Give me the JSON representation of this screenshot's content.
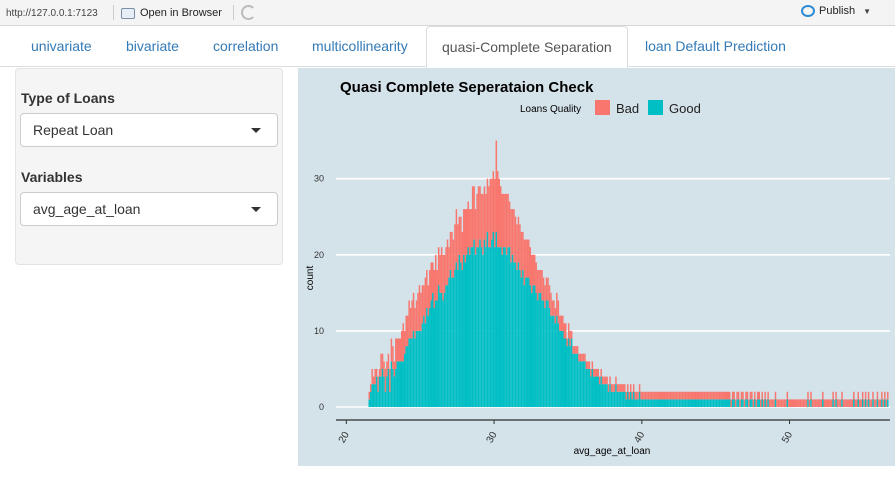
{
  "browser": {
    "url": "http://127.0.0.1:7123",
    "open_label": "Open in Browser",
    "publish_label": "Publish"
  },
  "tabs": [
    {
      "label": "univariate",
      "active": false
    },
    {
      "label": "bivariate",
      "active": false
    },
    {
      "label": "correlation",
      "active": false
    },
    {
      "label": "multicollinearity",
      "active": false
    },
    {
      "label": "quasi-Complete Separation",
      "active": true
    },
    {
      "label": "loan Default Prediction",
      "active": false
    }
  ],
  "sidebar": {
    "type_label": "Type of Loans",
    "type_value": "Repeat Loan",
    "var_label": "Variables",
    "var_value": "avg_age_at_loan"
  },
  "chart_data": {
    "type": "bar",
    "title": "Quasi Complete Seperataion Check",
    "xlabel": "avg_age_at_loan",
    "ylabel": "count",
    "xlim": [
      19.3,
      56.8
    ],
    "ylim": [
      0,
      36
    ],
    "xticks": [
      "20",
      "30",
      "40",
      "50"
    ],
    "yticks": [
      "0",
      "10",
      "20",
      "30"
    ],
    "legend": {
      "title": "Loans Quality",
      "position": "top",
      "entries": [
        "Bad",
        "Good"
      ]
    },
    "colors": {
      "Bad": "#f8766d",
      "Good": "#00bfc4",
      "background": "#d4e2e9",
      "grid": "#ffffff"
    },
    "stacked": true,
    "x_start": 21.5,
    "bin_width": 0.1,
    "series": [
      {
        "name": "Good",
        "values": [
          1,
          2,
          3,
          3,
          3,
          4,
          2,
          4,
          4,
          5,
          4,
          2,
          4,
          5,
          2,
          6,
          5,
          4,
          5,
          6,
          6,
          6,
          6,
          6,
          7,
          8,
          8,
          9,
          9,
          9,
          10,
          9,
          10,
          10,
          10,
          10,
          11,
          12,
          11,
          13,
          12,
          13,
          14,
          15,
          13,
          14,
          14,
          16,
          15,
          15,
          14,
          15,
          16,
          16,
          17,
          18,
          17,
          17,
          18,
          19,
          18,
          20,
          19,
          18,
          20,
          19,
          20,
          21,
          20,
          21,
          21,
          22,
          20,
          21,
          21,
          22,
          21,
          20,
          22,
          21,
          23,
          21,
          21,
          22,
          23,
          21,
          23,
          21,
          21,
          21,
          20,
          21,
          21,
          20,
          21,
          21,
          19,
          20,
          19,
          19,
          18,
          19,
          18,
          17,
          18,
          16,
          17,
          17,
          17,
          16,
          15,
          16,
          16,
          15,
          14,
          15,
          15,
          14,
          14,
          13,
          14,
          14,
          13,
          12,
          12,
          12,
          11,
          12,
          11,
          10,
          10,
          10,
          9,
          9,
          8,
          9,
          8,
          9,
          7,
          7,
          7,
          7,
          6,
          6,
          6,
          6,
          6,
          5,
          5,
          5,
          4,
          5,
          4,
          4,
          4,
          4,
          3,
          4,
          3,
          3,
          3,
          3,
          2,
          3,
          2,
          2,
          2,
          3,
          2,
          2,
          2,
          2,
          2,
          2,
          1,
          2,
          1,
          2,
          1,
          2,
          1,
          1,
          1,
          2,
          1,
          1,
          1,
          1,
          1,
          1,
          1,
          1,
          1,
          1,
          1,
          1,
          1,
          1,
          1,
          1,
          1,
          1,
          1,
          1,
          1,
          1,
          1,
          1,
          1,
          1,
          1,
          1,
          1,
          1,
          1,
          1,
          1,
          1,
          1,
          1,
          1,
          1,
          1,
          1,
          1,
          1,
          1,
          1,
          1,
          1,
          1,
          1,
          1,
          1,
          1,
          1,
          1,
          1,
          1,
          1,
          1,
          1,
          1,
          1,
          1,
          0,
          1,
          1,
          0,
          1,
          1,
          0,
          1,
          1,
          0,
          1,
          1,
          0,
          1,
          1,
          0,
          1,
          0,
          1,
          1,
          0,
          1,
          0,
          1,
          0,
          1,
          0,
          0,
          0,
          0,
          1,
          0,
          0,
          0,
          0,
          0,
          0,
          0,
          1,
          0,
          0,
          0,
          0,
          0,
          0,
          0,
          0,
          0,
          0,
          0,
          0,
          0,
          1,
          0,
          1,
          0,
          0,
          0,
          0,
          0,
          0,
          0,
          1,
          0,
          0,
          0,
          0,
          0,
          0,
          1,
          0,
          1,
          0,
          0,
          0,
          1,
          0,
          0,
          0,
          0,
          0,
          0,
          0,
          1,
          0,
          0,
          1,
          0,
          0,
          1,
          0,
          1,
          0,
          1,
          0,
          0,
          1,
          0,
          0,
          1,
          0,
          0,
          1,
          0,
          1,
          0,
          1
        ]
      },
      {
        "name": "Bad",
        "values": [
          1,
          1,
          2,
          1,
          2,
          1,
          2,
          1,
          3,
          2,
          2,
          3,
          2,
          2,
          3,
          3,
          3,
          2,
          4,
          3,
          3,
          3,
          4,
          5,
          3,
          4,
          4,
          5,
          4,
          5,
          5,
          4,
          4,
          5,
          6,
          5,
          5,
          4,
          6,
          5,
          4,
          5,
          5,
          4,
          5,
          6,
          4,
          5,
          5,
          6,
          6,
          5,
          5,
          6,
          4,
          5,
          6,
          5,
          6,
          7,
          6,
          5,
          6,
          5,
          6,
          7,
          6,
          6,
          6,
          5,
          8,
          7,
          6,
          7,
          8,
          7,
          7,
          8,
          7,
          7,
          7,
          8,
          9,
          8,
          8,
          9,
          12,
          10,
          9,
          8,
          8,
          7,
          7,
          8,
          7,
          6,
          7,
          6,
          7,
          6,
          6,
          6,
          6,
          6,
          5,
          6,
          5,
          5,
          5,
          5,
          5,
          4,
          4,
          4,
          4,
          3,
          3,
          4,
          3,
          3,
          3,
          3,
          3,
          3,
          2,
          2,
          2,
          3,
          3,
          2,
          2,
          2,
          2,
          2,
          1,
          2,
          2,
          1,
          1,
          1,
          1,
          1,
          1,
          1,
          1,
          1,
          1,
          1,
          1,
          1,
          1,
          1,
          1,
          1,
          1,
          1,
          1,
          1,
          1,
          1,
          1,
          1,
          1,
          1,
          1,
          1,
          1,
          1,
          1,
          1,
          1,
          1,
          1,
          1,
          1,
          1,
          1,
          1,
          1,
          1,
          1,
          1,
          1,
          1,
          1,
          1,
          1,
          1,
          1,
          1,
          1,
          1,
          1,
          1,
          1,
          1,
          1,
          1,
          1,
          1,
          1,
          1,
          1,
          1,
          1,
          1,
          1,
          1,
          1,
          1,
          1,
          1,
          1,
          1,
          1,
          1,
          1,
          1,
          1,
          1,
          1,
          1,
          1,
          1,
          1,
          1,
          1,
          1,
          1,
          1,
          1,
          1,
          1,
          1,
          1,
          1,
          1,
          1,
          1,
          1,
          1,
          1,
          1,
          1,
          1,
          1,
          1,
          1,
          1,
          1,
          1,
          1,
          1,
          1,
          1,
          1,
          1,
          1,
          1,
          1,
          1,
          1,
          1,
          1,
          1,
          1,
          1,
          1,
          1,
          1,
          1,
          1,
          1,
          1,
          1,
          1,
          1,
          1,
          1,
          1,
          1,
          1,
          1,
          1,
          1,
          1,
          1,
          1,
          1,
          1,
          1,
          1,
          1,
          1,
          1,
          1,
          1,
          1,
          1,
          1,
          1,
          1,
          1,
          1,
          1,
          1,
          1,
          1,
          1,
          1,
          1,
          1,
          1,
          1,
          1,
          1,
          1,
          1,
          1,
          1,
          1,
          1,
          1,
          1,
          1,
          1,
          1,
          1,
          1,
          1,
          1,
          1,
          1,
          1,
          1,
          1,
          1,
          1,
          1,
          1,
          1,
          1,
          1,
          1,
          1,
          1,
          1,
          1,
          1,
          1,
          1,
          1,
          1,
          1,
          1,
          1,
          1,
          1,
          1
        ]
      }
    ]
  }
}
